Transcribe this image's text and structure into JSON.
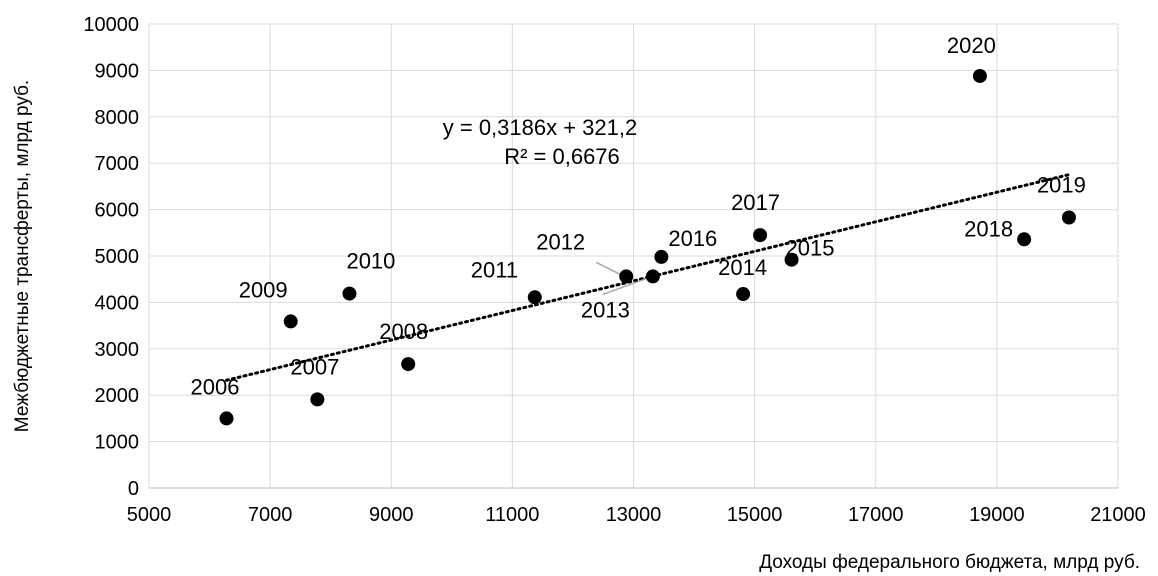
{
  "chart_data": {
    "type": "scatter",
    "xlabel": "Доходы федерального бюджета, млрд руб.",
    "ylabel": "Межбюджетные трансферты, млрд руб.",
    "xlim": [
      5000,
      21000
    ],
    "ylim": [
      0,
      10000
    ],
    "x_ticks": [
      5000,
      7000,
      9000,
      11000,
      13000,
      15000,
      17000,
      19000,
      21000
    ],
    "y_ticks": [
      0,
      1000,
      2000,
      3000,
      4000,
      5000,
      6000,
      7000,
      8000,
      9000,
      10000
    ],
    "grid": true,
    "points": [
      {
        "label": "2006",
        "x": 6280,
        "y": 1500
      },
      {
        "label": "2007",
        "x": 7780,
        "y": 1910
      },
      {
        "label": "2008",
        "x": 9280,
        "y": 2670
      },
      {
        "label": "2009",
        "x": 7340,
        "y": 3590
      },
      {
        "label": "2010",
        "x": 8310,
        "y": 4190
      },
      {
        "label": "2011",
        "x": 11370,
        "y": 4110
      },
      {
        "label": "2012",
        "x": 12880,
        "y": 4560
      },
      {
        "label": "2013",
        "x": 13320,
        "y": 4560
      },
      {
        "label": "2014",
        "x": 14810,
        "y": 4180
      },
      {
        "label": "2015",
        "x": 15610,
        "y": 4920
      },
      {
        "label": "2016",
        "x": 13460,
        "y": 4980
      },
      {
        "label": "2017",
        "x": 15090,
        "y": 5450
      },
      {
        "label": "2018",
        "x": 19450,
        "y": 5360
      },
      {
        "label": "2019",
        "x": 20190,
        "y": 5830
      },
      {
        "label": "2020",
        "x": 18720,
        "y": 8880
      }
    ],
    "trendline": {
      "type": "linear",
      "slope": 0.3186,
      "intercept": 321.2,
      "equation": "y = 0,3186x + 321,2",
      "r_squared": "R² = 0,6676"
    }
  }
}
